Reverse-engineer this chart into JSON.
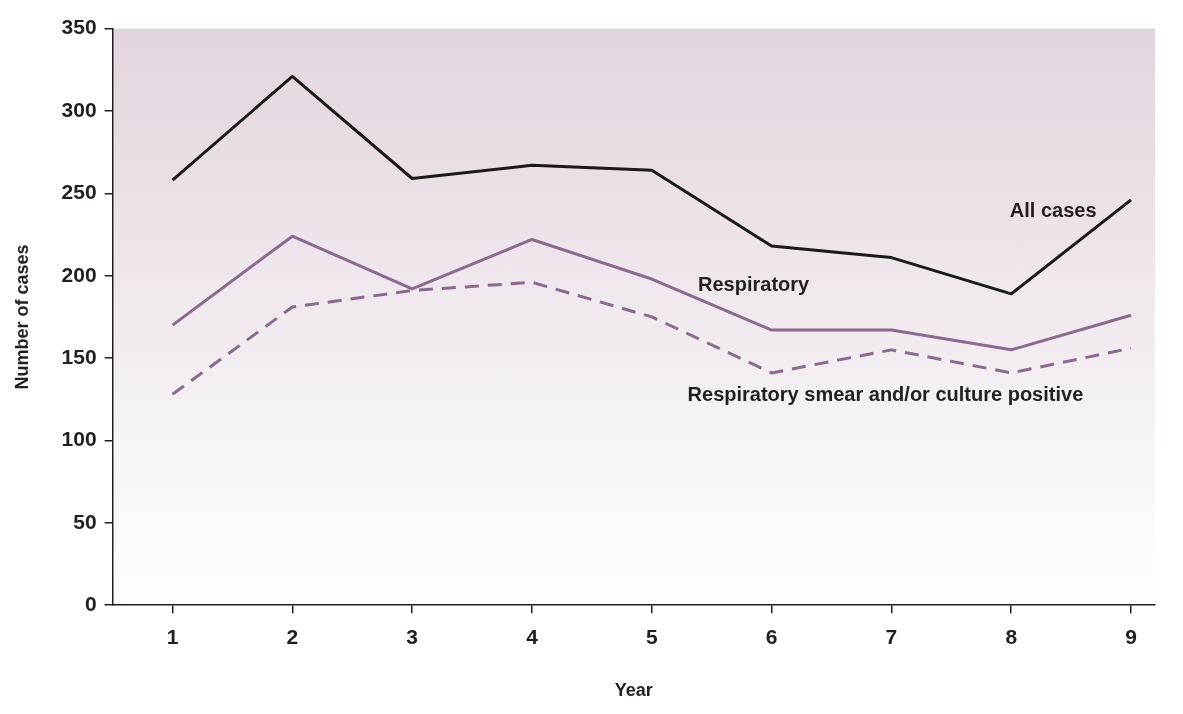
{
  "chart_data": {
    "type": "line",
    "xlabel": "Year",
    "ylabel": "Number of cases",
    "x": [
      1,
      2,
      3,
      4,
      5,
      6,
      7,
      8,
      9
    ],
    "xlim": [
      0.5,
      9.2
    ],
    "xticks": [
      1,
      2,
      3,
      4,
      5,
      6,
      7,
      8,
      9
    ],
    "ylim": [
      0,
      350
    ],
    "yticks": [
      0,
      50,
      100,
      150,
      200,
      250,
      300,
      350
    ],
    "grid": false,
    "legend": false,
    "marker": "none",
    "series": [
      {
        "name": "All cases",
        "color": "#1a1a1a",
        "line_style": "solid",
        "values": [
          258,
          321,
          259,
          267,
          264,
          218,
          211,
          189,
          246
        ]
      },
      {
        "name": "Respiratory",
        "color": "#8b6a8f",
        "line_style": "solid",
        "values": [
          170,
          224,
          192,
          222,
          198,
          167,
          167,
          155,
          176
        ]
      },
      {
        "name": "Respiratory smear and/or culture positive",
        "color": "#8b6a8f",
        "line_style": "dashed",
        "values": [
          128,
          181,
          191,
          196,
          175,
          141,
          155,
          141,
          156
        ]
      }
    ]
  }
}
